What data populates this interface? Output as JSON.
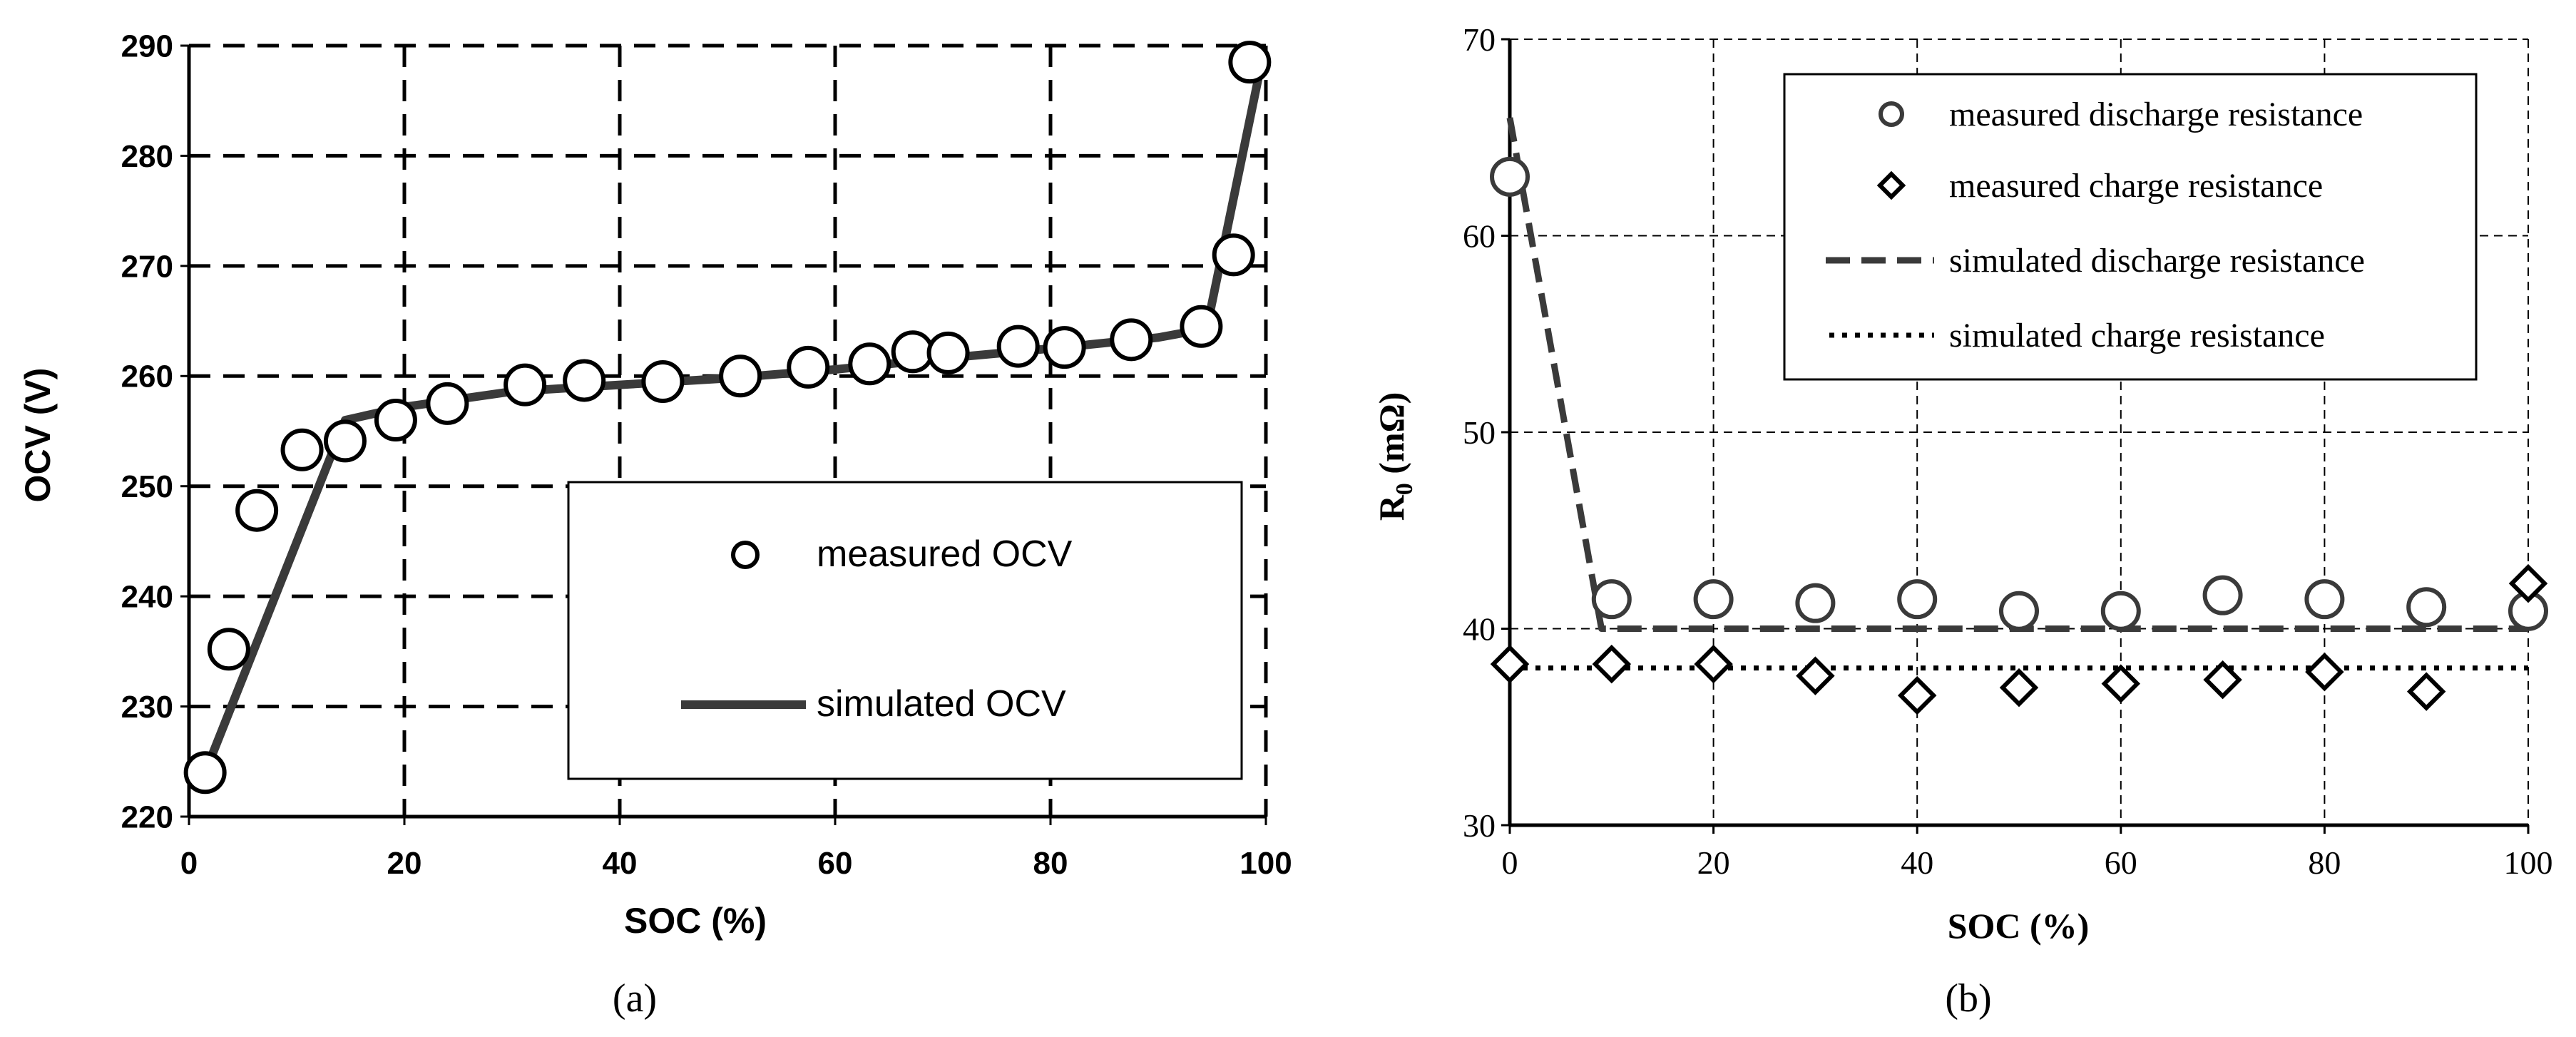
{
  "colors": {
    "axis": "#000000",
    "grid": "#000000",
    "series": "#3a3a3a",
    "background": "#ffffff"
  },
  "chart_data": [
    {
      "type": "scatter",
      "panel_label": "(a)",
      "xlabel": "SOC (%)",
      "ylabel": "OCV (V)",
      "xlim": [
        0,
        100
      ],
      "ylim": [
        220,
        290
      ],
      "xticks": [
        "0",
        "20",
        "40",
        "60",
        "80",
        "100"
      ],
      "yticks": [
        "220",
        "230",
        "240",
        "250",
        "260",
        "270",
        "280",
        "290"
      ],
      "grid": true,
      "legend_position": "bottom-right",
      "series": [
        {
          "name": "measured OCV",
          "style": "circle-markers",
          "x": [
            1.5,
            3.7,
            6.3,
            10.5,
            14.5,
            19.2,
            24.0,
            31.2,
            36.7,
            44.0,
            51.2,
            57.5,
            63.2,
            67.2,
            70.5,
            77.0,
            81.3,
            87.5,
            94.0,
            97.0,
            98.5
          ],
          "y": [
            224.0,
            235.2,
            247.8,
            253.3,
            254.1,
            256.0,
            257.5,
            259.2,
            259.6,
            259.5,
            260.0,
            260.8,
            261.1,
            262.2,
            262.1,
            262.7,
            262.6,
            263.3,
            264.5,
            271.0,
            288.5
          ]
        },
        {
          "name": "simulated OCV",
          "style": "solid-line",
          "x": [
            1.5,
            14.5,
            20,
            30,
            40,
            50,
            60,
            70,
            80,
            90,
            94.5,
            99.5
          ],
          "y": [
            224.0,
            256.0,
            257.2,
            258.6,
            259.2,
            259.8,
            260.6,
            261.6,
            262.5,
            263.5,
            264.3,
            288.0
          ]
        }
      ]
    },
    {
      "type": "scatter",
      "panel_label": "(b)",
      "xlabel": "SOC (%)",
      "ylabel_main": "R",
      "ylabel_sub": "0",
      "ylabel_unit": " (mΩ)",
      "xlim": [
        0,
        100
      ],
      "ylim": [
        30,
        70
      ],
      "xticks": [
        "0",
        "20",
        "40",
        "60",
        "80",
        "100"
      ],
      "yticks": [
        "30",
        "40",
        "50",
        "60",
        "70"
      ],
      "grid": true,
      "legend_position": "top-right",
      "series": [
        {
          "name": "measured discharge resistance",
          "style": "circle-markers",
          "x": [
            0,
            10,
            20,
            30,
            40,
            50,
            60,
            70,
            80,
            90,
            100
          ],
          "y": [
            63.0,
            41.5,
            41.5,
            41.3,
            41.5,
            40.9,
            40.9,
            41.7,
            41.5,
            41.1,
            40.9
          ]
        },
        {
          "name": "measured charge resistance",
          "style": "diamond-markers",
          "x": [
            0,
            10,
            20,
            30,
            40,
            50,
            60,
            70,
            80,
            90,
            100
          ],
          "y": [
            38.2,
            38.2,
            38.2,
            37.6,
            36.6,
            37.0,
            37.2,
            37.4,
            37.8,
            36.8,
            42.3
          ]
        },
        {
          "name": "simulated discharge resistance",
          "style": "dashed-line",
          "x": [
            0,
            9,
            100
          ],
          "y": [
            66.0,
            40.0,
            40.0
          ]
        },
        {
          "name": "simulated charge resistance",
          "style": "dotted-line",
          "x": [
            0,
            100
          ],
          "y": [
            38.0,
            38.0
          ]
        }
      ]
    }
  ]
}
